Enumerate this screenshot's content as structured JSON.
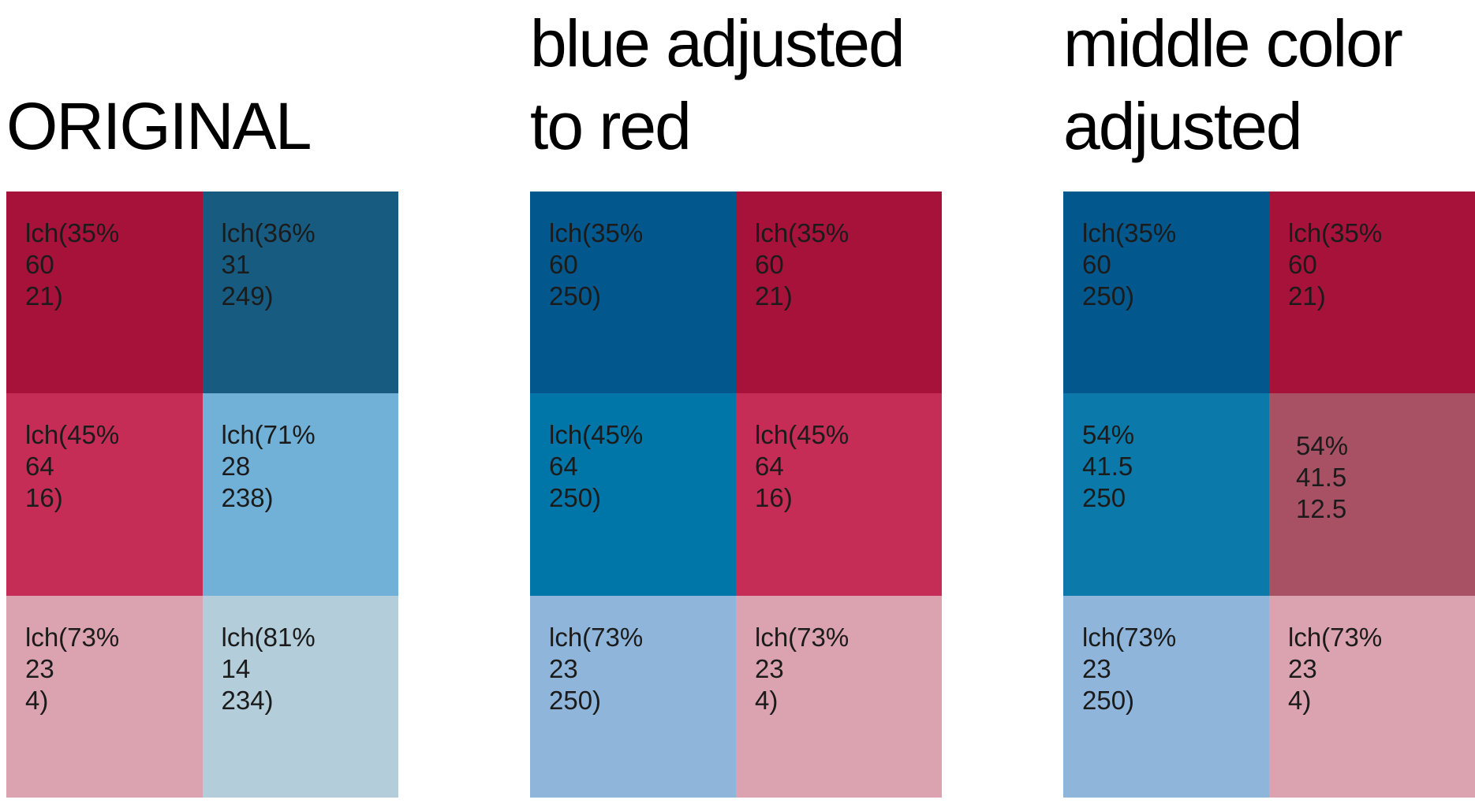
{
  "figure": {
    "background": "#ffffff",
    "title_color": "#000000",
    "label_color": "#1b1b1b"
  },
  "groups": [
    {
      "title": "ORIGINAL",
      "cells": [
        {
          "label": "lch(35%\n60\n21)",
          "color": "#a6123a"
        },
        {
          "label": "lch(36%\n31\n249)",
          "color": "#175c80"
        },
        {
          "label": "lch(45%\n64\n16)",
          "color": "#c62d56"
        },
        {
          "label": "lch(71%\n28\n238)",
          "color": "#72b1d7"
        },
        {
          "label": "lch(73%\n23\n4)",
          "color": "#dba3b0"
        },
        {
          "label": "lch(81%\n14\n234)",
          "color": "#b4cdda"
        }
      ]
    },
    {
      "title": "blue adjusted\nto red",
      "cells": [
        {
          "label": "lch(35%\n60\n250)",
          "color": "#02588c"
        },
        {
          "label": "lch(35%\n60\n21)",
          "color": "#a6123a"
        },
        {
          "label": "lch(45%\n64\n250)",
          "color": "#0076a8"
        },
        {
          "label": "lch(45%\n64\n16)",
          "color": "#c62d56"
        },
        {
          "label": "lch(73%\n23\n250)",
          "color": "#8fb6da"
        },
        {
          "label": "lch(73%\n23\n4)",
          "color": "#dba3b0"
        }
      ]
    },
    {
      "title": "middle color\nadjusted",
      "cells": [
        {
          "label": "lch(35%\n60\n250)",
          "color": "#02588c"
        },
        {
          "label": "lch(35%\n60\n21)",
          "color": "#a6123a"
        },
        {
          "label": "54%\n41.5\n250",
          "color": "#0b7aab"
        },
        {
          "label": "54%\n41.5\n12.5",
          "color": "#a85164"
        },
        {
          "label": "lch(73%\n23\n250)",
          "color": "#8fb6da"
        },
        {
          "label": "lch(73%\n23\n4)",
          "color": "#dba3b0"
        }
      ]
    }
  ]
}
